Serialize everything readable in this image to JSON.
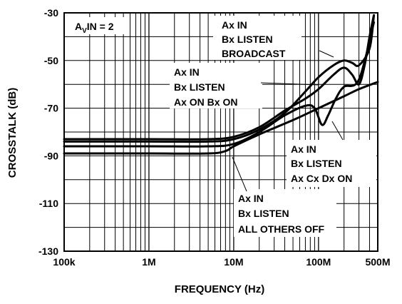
{
  "chart_data": {
    "type": "line",
    "title": "",
    "xlabel": "FREQUENCY (Hz)",
    "ylabel": "CROSSTALK (dB)",
    "xscale": "log",
    "xlim": [
      100000,
      500000000
    ],
    "ylim": [
      -130,
      -30
    ],
    "grid": true,
    "x_ticks": [
      {
        "value": 100000,
        "label": "100k"
      },
      {
        "value": 1000000,
        "label": "1M"
      },
      {
        "value": 10000000,
        "label": "10M"
      },
      {
        "value": 100000000,
        "label": "100M"
      },
      {
        "value": 500000000,
        "label": "500M"
      }
    ],
    "y_ticks": [
      {
        "value": -30,
        "label": "-30"
      },
      {
        "value": -50,
        "label": "-50"
      },
      {
        "value": -70,
        "label": "-70"
      },
      {
        "value": -90,
        "label": "-90"
      },
      {
        "value": -110,
        "label": "-110"
      },
      {
        "value": -130,
        "label": "-130"
      }
    ],
    "condition": {
      "prefix": "A",
      "sub": "V",
      "suffix": "IN = 2"
    },
    "series": [
      {
        "name": "Ax IN / Bx LISTEN / BROADCAST",
        "x": [
          100000,
          1000000,
          5000000,
          10000000,
          20000000,
          40000000,
          70000000,
          100000000,
          150000000,
          200000000,
          250000000,
          300000000,
          400000000,
          450000000
        ],
        "values": [
          -84,
          -84,
          -84,
          -83,
          -79,
          -72,
          -63,
          -57,
          -52,
          -50,
          -51,
          -52,
          -45,
          -31
        ]
      },
      {
        "name": "Ax IN / Bx LISTEN / Ax ON Bx ON",
        "x": [
          100000,
          1000000,
          5000000,
          10000000,
          20000000,
          40000000,
          70000000,
          100000000,
          150000000,
          200000000,
          250000000,
          300000000,
          350000000,
          400000000,
          450000000
        ],
        "values": [
          -83,
          -83,
          -83,
          -82,
          -78,
          -71,
          -66,
          -62,
          -56,
          -53,
          -56,
          -60,
          -52,
          -40,
          -31
        ]
      },
      {
        "name": "Ax IN / Bx LISTEN / Ax Cx Dx ON",
        "x": [
          100000,
          1000000,
          5000000,
          10000000,
          20000000,
          40000000,
          70000000,
          90000000,
          110000000,
          130000000,
          160000000,
          200000000,
          300000000,
          450000000
        ],
        "values": [
          -86,
          -86,
          -86,
          -85,
          -80,
          -73,
          -69,
          -70,
          -77,
          -73,
          -66,
          -61,
          -58,
          -34
        ]
      },
      {
        "name": "Ax IN / Bx LISTEN / ALL OTHERS OFF",
        "x": [
          100000,
          1000000,
          5000000,
          8000000,
          10000000,
          20000000,
          50000000,
          100000000,
          200000000,
          300000000,
          500000000
        ],
        "values": [
          -89,
          -89,
          -89,
          -88,
          -86,
          -81,
          -75,
          -70,
          -65,
          -62,
          -59
        ]
      }
    ],
    "annotations": [
      {
        "lines": [
          "Ax IN",
          "Bx LISTEN",
          "BROADCAST"
        ]
      },
      {
        "lines": [
          "Ax IN",
          "Bx LISTEN",
          "Ax ON Bx ON"
        ]
      },
      {
        "lines": [
          "Ax IN",
          "Bx LISTEN",
          "Ax Cx Dx ON"
        ]
      },
      {
        "lines": [
          "Ax IN",
          "Bx LISTEN",
          "ALL OTHERS OFF"
        ]
      }
    ]
  }
}
